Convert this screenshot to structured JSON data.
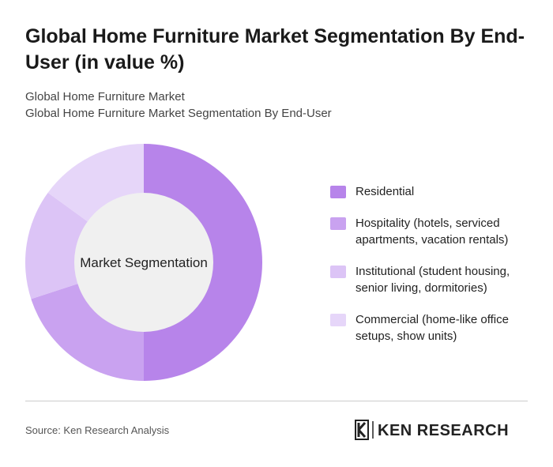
{
  "chart_data": {
    "type": "donut",
    "title": "Global Home Furniture Market Segmentation By End-User (in value %)",
    "subtitle": [
      "Global Home Furniture Market",
      "Global Home Furniture Market Segmentation By End-User"
    ],
    "center_label": "Market Segmentation",
    "categories": [
      "Residential",
      "Hospitality (hotels, serviced apartments, vacation rentals)",
      "Institutional (student housing, senior living, dormitories)",
      "Commercial (home-like office setups, show units)"
    ],
    "values": [
      50,
      20,
      15,
      15
    ],
    "colors": [
      "#b784ea",
      "#c9a2f0",
      "#dcc4f6",
      "#e6d6f9"
    ],
    "legend": "right"
  },
  "source": "Source: Ken Research Analysis",
  "logo": "KEN RESEARCH"
}
